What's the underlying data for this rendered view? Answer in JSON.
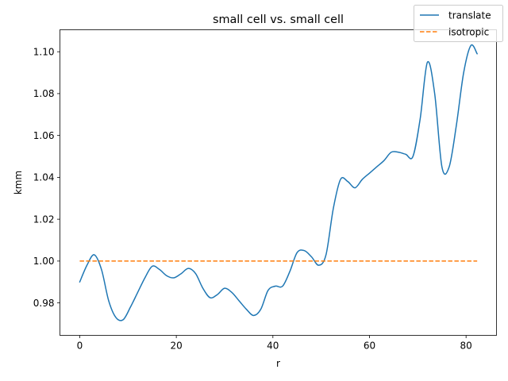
{
  "chart_data": {
    "type": "line",
    "title": "small cell vs. small cell",
    "xlabel": "r",
    "ylabel": "kmm",
    "xlim": [
      -4.1,
      86.3
    ],
    "ylim": [
      0.9645,
      1.1105
    ],
    "x_ticks": [
      0,
      20,
      40,
      60,
      80
    ],
    "x_tick_labels": [
      "0",
      "20",
      "40",
      "60",
      "80"
    ],
    "y_ticks": [
      0.98,
      1.0,
      1.02,
      1.04,
      1.06,
      1.08,
      1.1
    ],
    "y_tick_labels": [
      "0.98",
      "1.00",
      "1.02",
      "1.04",
      "1.06",
      "1.08",
      "1.10"
    ],
    "grid": false,
    "legend_position": "top-right",
    "series": [
      {
        "name": "translate",
        "color": "#1f77b4",
        "style": "solid",
        "x": [
          0,
          1.5,
          3,
          4.5,
          6,
          7.5,
          9,
          10.5,
          12,
          13.5,
          15,
          16.5,
          18,
          19.5,
          21,
          22.5,
          24,
          25.5,
          27,
          28.5,
          30,
          31.5,
          33,
          34.5,
          36,
          37.5,
          39,
          40.5,
          42,
          43.5,
          45,
          46.5,
          48,
          49.5,
          51,
          52.5,
          54,
          55.5,
          57,
          58.5,
          60,
          61.5,
          63,
          64.5,
          66,
          67.5,
          69,
          70.5,
          72,
          73.5,
          75,
          76.5,
          78,
          79.5,
          81,
          82.3
        ],
        "y": [
          0.99,
          0.998,
          1.003,
          0.996,
          0.981,
          0.973,
          0.972,
          0.978,
          0.985,
          0.992,
          0.9975,
          0.996,
          0.993,
          0.992,
          0.994,
          0.9965,
          0.994,
          0.987,
          0.9825,
          0.984,
          0.987,
          0.985,
          0.981,
          0.977,
          0.974,
          0.977,
          0.986,
          0.988,
          0.988,
          0.995,
          1.004,
          1.005,
          1.002,
          0.998,
          1.003,
          1.025,
          1.039,
          1.038,
          1.035,
          1.039,
          1.042,
          1.045,
          1.048,
          1.052,
          1.052,
          1.051,
          1.05,
          1.068,
          1.095,
          1.08,
          1.045,
          1.045,
          1.065,
          1.09,
          1.103,
          1.099
        ]
      },
      {
        "name": "isotropic",
        "color": "#ff7f0e",
        "style": "dashed",
        "x": [
          0,
          82.3
        ],
        "y": [
          1.0,
          1.0
        ]
      }
    ]
  }
}
